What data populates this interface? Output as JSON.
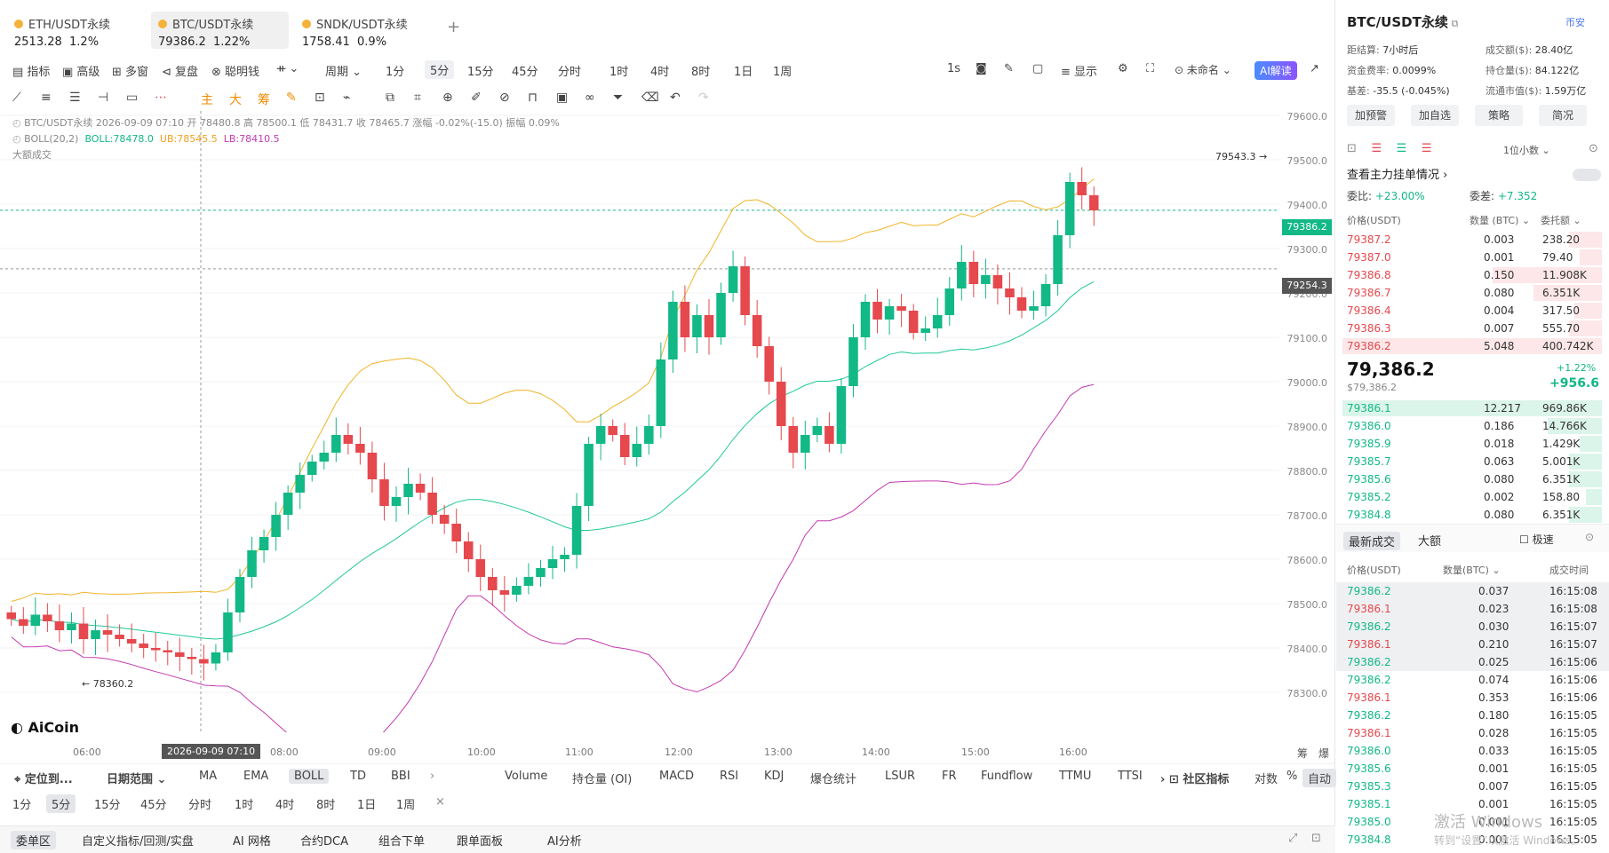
{
  "tabs": [
    {
      "name": "ETH/USDT永续",
      "price": "2513.28",
      "chg": "1.2%"
    },
    {
      "name": "BTC/USDT永续",
      "price": "79386.2",
      "chg": "1.22%"
    },
    {
      "name": "SNDK/USDT永续",
      "price": "1758.41",
      "chg": "0.9%"
    }
  ],
  "toolbar": {
    "indicator": "指标",
    "advanced": "高级",
    "multi": "多窗",
    "replay": "复盘",
    "smart": "聪明钱",
    "period": "周期",
    "timeframes": [
      "1分",
      "5分",
      "15分",
      "45分",
      "分时",
      "1时",
      "4时",
      "8时",
      "1日",
      "1周"
    ],
    "sec": "1s",
    "display": "显示",
    "unnamed": "未命名",
    "ai": "AI解读"
  },
  "drawTools": [
    "主",
    "大",
    "筹"
  ],
  "chartInfo": {
    "line1": "BTC/USDT永续  2026-09-09 07:10  开 78480.8  高 78500.1  低 78431.7  收 78465.7  涨幅 -0.02%(-15.0)  振幅 0.09%",
    "bollLabel": "BOLL(20,2)",
    "boll": "BOLL:78478.0",
    "ub": "UB:78545.5",
    "lb": "LB:78410.5",
    "bigTrade": "大额成交",
    "high": "79543.3",
    "low": "78360.2",
    "price": "79386.2",
    "cross": "79254.3"
  },
  "yaxis": [
    "79600.0",
    "79500.0",
    "79400.0",
    "79300.0",
    "79200.0",
    "79100.0",
    "79000.0",
    "78900.0",
    "78800.0",
    "78700.0",
    "78600.0",
    "78500.0",
    "78400.0",
    "78300.0"
  ],
  "xaxis": [
    "06:00",
    "08:00",
    "09:00",
    "10:00",
    "11:00",
    "12:00",
    "13:00",
    "14:00",
    "15:00",
    "16:00"
  ],
  "xcursor": "2026-09-09 07:10",
  "chartCorner": [
    "筹",
    "爆"
  ],
  "logo": "AiCoin",
  "indicators": {
    "locate": "定位到...",
    "range": "日期范围",
    "items": [
      "MA",
      "EMA",
      "BOLL",
      "TD",
      "BBI"
    ],
    "sub": [
      "Volume",
      "持仓量 (OI)",
      "MACD",
      "RSI",
      "KDJ",
      "爆仓统计",
      "LSUR",
      "FR",
      "Fundflow",
      "TTMU",
      "TTSI"
    ],
    "community": "社区指标",
    "log": "对数",
    "pct": "%",
    "auto": "自动"
  },
  "tf2": [
    "1分",
    "5分",
    "15分",
    "45分",
    "分时",
    "1时",
    "4时",
    "8时",
    "1日",
    "1周"
  ],
  "bottom": [
    "委单区",
    "自定义指标/回测/实盘",
    "AI 网格",
    "合约DCA",
    "组合下单",
    "跟单面板",
    "AI分析"
  ],
  "right": {
    "title": "BTC/USDT永续",
    "exchange": "币安",
    "stats": [
      [
        "距结算:",
        "7小时后"
      ],
      [
        "成交额($):",
        "28.40亿"
      ],
      [
        "资金费率:",
        "0.0099%"
      ],
      [
        "持仓量($):",
        "84.122亿"
      ],
      [
        "基差:",
        "-35.5 (-0.045%)"
      ],
      [
        "流通市值($):",
        "1.59万亿"
      ]
    ],
    "buttons": [
      "加预警",
      "加自选",
      "策略",
      "简况"
    ],
    "decimals": "1位小数",
    "mainOrders": "查看主力挂单情况",
    "ratioLabel": "委比:",
    "ratio": "+23.00%",
    "diffLabel": "委差:",
    "diff": "+7.352",
    "obHeaders": [
      "价格(USDT)",
      "数量 (BTC)",
      "委托额"
    ],
    "asks": [
      [
        "79387.2",
        "0.003",
        "238.20"
      ],
      [
        "79387.0",
        "0.001",
        "79.40"
      ],
      [
        "79386.8",
        "0.150",
        "11.908K"
      ],
      [
        "79386.7",
        "0.080",
        "6.351K"
      ],
      [
        "79386.4",
        "0.004",
        "317.50"
      ],
      [
        "79386.3",
        "0.007",
        "555.70"
      ],
      [
        "79386.2",
        "5.048",
        "400.742K"
      ]
    ],
    "last": "79,386.2",
    "lastUsd": "$79,386.2",
    "lastPct": "+1.22%",
    "lastChg": "+956.6",
    "bids": [
      [
        "79386.1",
        "12.217",
        "969.86K"
      ],
      [
        "79386.0",
        "0.186",
        "14.766K"
      ],
      [
        "79385.9",
        "0.018",
        "1.429K"
      ],
      [
        "79385.7",
        "0.063",
        "5.001K"
      ],
      [
        "79385.6",
        "0.080",
        "6.351K"
      ],
      [
        "79385.2",
        "0.002",
        "158.80"
      ],
      [
        "79384.8",
        "0.080",
        "6.351K"
      ]
    ],
    "tradeTabs": [
      "最新成交",
      "大额"
    ],
    "fast": "极速",
    "tradeHeaders": [
      "价格(USDT)",
      "数量(BTC)",
      "成交时间"
    ],
    "trades": [
      [
        "79386.2",
        "0.037",
        "16:15:08",
        "g"
      ],
      [
        "79386.1",
        "0.023",
        "16:15:08",
        "r"
      ],
      [
        "79386.2",
        "0.030",
        "16:15:07",
        "g"
      ],
      [
        "79386.1",
        "0.210",
        "16:15:07",
        "r"
      ],
      [
        "79386.2",
        "0.025",
        "16:15:06",
        "g"
      ],
      [
        "79386.2",
        "0.074",
        "16:15:06",
        "g"
      ],
      [
        "79386.1",
        "0.353",
        "16:15:06",
        "r"
      ],
      [
        "79386.2",
        "0.180",
        "16:15:05",
        "g"
      ],
      [
        "79386.1",
        "0.028",
        "16:15:05",
        "r"
      ],
      [
        "79386.0",
        "0.033",
        "16:15:05",
        "g"
      ],
      [
        "79385.6",
        "0.001",
        "16:15:05",
        "g"
      ],
      [
        "79385.3",
        "0.007",
        "16:15:05",
        "g"
      ],
      [
        "79385.1",
        "0.001",
        "16:15:05",
        "g"
      ],
      [
        "79385.0",
        "0.001",
        "16:15:05",
        "g"
      ],
      [
        "79384.8",
        "0.001",
        "16:15:05",
        "g"
      ]
    ],
    "watermark1": "激活 Windows",
    "watermark2": "转到“设置”以激活 Windows。"
  },
  "chart_data": {
    "type": "candlestick",
    "ylim": [
      78300,
      79600
    ],
    "candles": [
      [
        78480,
        78465
      ],
      [
        78465,
        78450
      ],
      [
        78450,
        78475
      ],
      [
        78475,
        78460
      ],
      [
        78460,
        78440
      ],
      [
        78440,
        78455
      ],
      [
        78455,
        78420
      ],
      [
        78420,
        78440
      ],
      [
        78440,
        78430
      ],
      [
        78430,
        78420
      ],
      [
        78420,
        78410
      ],
      [
        78410,
        78400
      ],
      [
        78400,
        78395
      ],
      [
        78395,
        78390
      ],
      [
        78390,
        78380
      ],
      [
        78380,
        78375
      ],
      [
        78375,
        78365
      ],
      [
        78365,
        78390
      ],
      [
        78390,
        78480
      ],
      [
        78480,
        78560
      ],
      [
        78560,
        78620
      ],
      [
        78620,
        78650
      ],
      [
        78650,
        78700
      ],
      [
        78700,
        78750
      ],
      [
        78750,
        78790
      ],
      [
        78790,
        78820
      ],
      [
        78820,
        78840
      ],
      [
        78840,
        78880
      ],
      [
        78880,
        78860
      ],
      [
        78860,
        78840
      ],
      [
        78840,
        78780
      ],
      [
        78780,
        78720
      ],
      [
        78720,
        78740
      ],
      [
        78740,
        78770
      ],
      [
        78770,
        78750
      ],
      [
        78750,
        78700
      ],
      [
        78700,
        78680
      ],
      [
        78680,
        78640
      ],
      [
        78640,
        78600
      ],
      [
        78600,
        78560
      ],
      [
        78560,
        78530
      ],
      [
        78530,
        78520
      ],
      [
        78520,
        78540
      ],
      [
        78540,
        78560
      ],
      [
        78560,
        78580
      ],
      [
        78580,
        78600
      ],
      [
        78600,
        78610
      ],
      [
        78610,
        78720
      ],
      [
        78720,
        78860
      ],
      [
        78860,
        78900
      ],
      [
        78900,
        78880
      ],
      [
        78880,
        78830
      ],
      [
        78830,
        78860
      ],
      [
        78860,
        78900
      ],
      [
        78900,
        79050
      ],
      [
        79050,
        79180
      ],
      [
        79180,
        79100
      ],
      [
        79100,
        79150
      ],
      [
        79150,
        79100
      ],
      [
        79100,
        79200
      ],
      [
        79200,
        79260
      ],
      [
        79260,
        79150
      ],
      [
        79150,
        79080
      ],
      [
        79080,
        79000
      ],
      [
        79000,
        78900
      ],
      [
        78900,
        78840
      ],
      [
        78840,
        78880
      ],
      [
        78880,
        78900
      ],
      [
        78900,
        78860
      ],
      [
        78860,
        78990
      ],
      [
        78990,
        79100
      ],
      [
        79100,
        79180
      ],
      [
        79180,
        79140
      ],
      [
        79140,
        79170
      ],
      [
        79170,
        79160
      ],
      [
        79160,
        79110
      ],
      [
        79110,
        79120
      ],
      [
        79120,
        79150
      ],
      [
        79150,
        79210
      ],
      [
        79210,
        79270
      ],
      [
        79270,
        79220
      ],
      [
        79220,
        79240
      ],
      [
        79240,
        79210
      ],
      [
        79210,
        79190
      ],
      [
        79190,
        79160
      ],
      [
        79160,
        79170
      ],
      [
        79170,
        79220
      ],
      [
        79220,
        79330
      ],
      [
        79330,
        79450
      ],
      [
        79450,
        79420
      ],
      [
        79420,
        79386
      ]
    ]
  }
}
